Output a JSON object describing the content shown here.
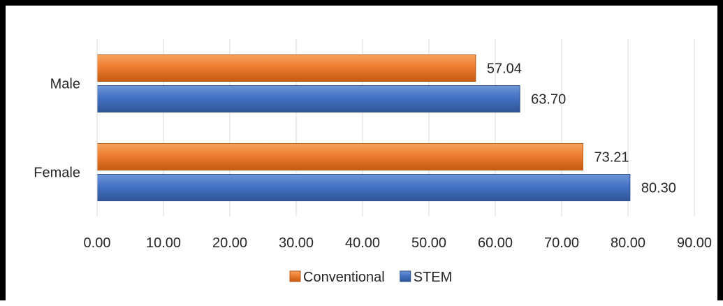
{
  "chart_data": {
    "type": "bar",
    "orientation": "horizontal",
    "categories": [
      "Male",
      "Female"
    ],
    "series": [
      {
        "name": "Conventional",
        "values": [
          57.04,
          73.21
        ],
        "color": "#ED7D31"
      },
      {
        "name": "STEM",
        "values": [
          63.7,
          80.3
        ],
        "color": "#4472C4"
      }
    ],
    "data_labels": {
      "Conventional": [
        "57.04",
        "73.21"
      ],
      "STEM": [
        "63.70",
        "80.30"
      ]
    },
    "x_ticks": [
      "0.00",
      "10.00",
      "20.00",
      "30.00",
      "40.00",
      "50.00",
      "60.00",
      "70.00",
      "80.00",
      "90.00"
    ],
    "xlim": [
      0,
      90
    ],
    "title": "",
    "xlabel": "",
    "ylabel": "",
    "grid": "vertical",
    "legend": "bottom"
  }
}
